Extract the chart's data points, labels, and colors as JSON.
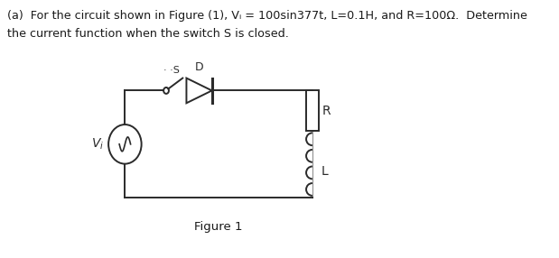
{
  "title_line1": "(a)  For the circuit shown in Figure (1), Vᵢ = 100sin377t, L=0.1H, and R=100Ω.  Determine",
  "title_line2": "the current function when the switch S is closed.",
  "figure_label": "Figure 1",
  "bg_color": "#ffffff",
  "line_color": "#2a2a2a",
  "text_color": "#1a1a1a",
  "lw": 1.4
}
